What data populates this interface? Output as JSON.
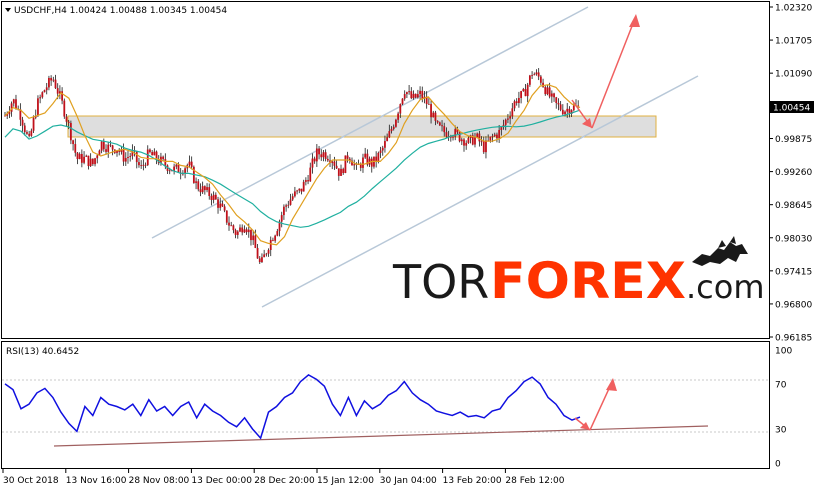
{
  "header": {
    "info": "USDCHF,H4 1.00424 1.00488 1.00345 1.00454",
    "rsi_label": "RSI(13) 40.6452",
    "current_price": "1.00454"
  },
  "logo": {
    "tor": "TOR",
    "forex": "FOREX",
    "dotcom": ".com"
  },
  "colors": {
    "candle_body": "#c0101a",
    "candle_wick": "#1a1a1a",
    "ma_fast": "#e0a020",
    "ma_slow": "#20b0a0",
    "channel": "#b8c8d8",
    "zone_fill": "#d8d8d8",
    "zone_border": "#e0b040",
    "arrow": "#f06060",
    "rsi_line": "#1010e0",
    "rsi_trend": "#a06060",
    "price_tag": "#000000",
    "logo_dark": "#1a1a1a",
    "logo_red": "#ff3300"
  },
  "chart_data": [
    {
      "type": "line",
      "title": "USDCHF,H4 1.00424 1.00488 1.00345 1.00454",
      "ylim": [
        0.96185,
        1.0232
      ],
      "y_ticks": [
        "1.02320",
        "1.01705",
        "1.01090",
        "1.00454",
        "0.99875",
        "0.99260",
        "0.98645",
        "0.98030",
        "0.97415",
        "0.96800",
        "0.96185"
      ],
      "x_ticks": [
        "30 Oct 2018",
        "13 Nov 16:00",
        "28 Nov 08:00",
        "13 Dec 00:00",
        "28 Dec 20:00",
        "15 Jan 12:00",
        "30 Jan 04:00",
        "13 Feb 20:00",
        "28 Feb 12:00"
      ],
      "x": [
        0,
        8,
        16,
        24,
        32,
        40,
        48,
        56,
        64,
        72,
        80,
        88,
        96,
        104,
        112,
        120,
        128,
        136,
        144,
        152,
        160,
        168,
        176,
        184,
        192,
        200,
        208,
        216,
        224,
        232,
        240,
        248,
        256,
        264,
        272,
        280,
        288,
        296,
        304,
        312,
        320,
        328,
        336,
        344,
        352,
        360,
        368,
        376,
        384,
        392,
        400,
        408,
        416,
        424,
        432,
        440,
        448,
        456,
        464,
        472,
        480,
        488,
        496,
        504,
        512,
        520,
        528,
        536,
        544,
        552,
        560,
        568,
        576
      ],
      "series": [
        {
          "values": [
            1.003,
            1.006,
            1.003,
            0.998,
            1.005,
            1.008,
            1.01,
            1.006,
            1.001,
            0.995,
            0.995,
            0.994,
            0.998,
            0.997,
            0.997,
            0.995,
            0.996,
            0.993,
            0.996,
            0.995,
            0.994,
            0.993,
            0.993,
            0.994,
            0.99,
            0.989,
            0.988,
            0.986,
            0.983,
            0.981,
            0.983,
            0.98,
            0.975,
            0.979,
            0.982,
            0.986,
            0.988,
            0.989,
            0.992,
            0.996,
            0.996,
            0.995,
            0.992,
            0.996,
            0.993,
            0.995,
            0.994,
            0.996,
            0.999,
            1.003,
            1.008,
            1.006,
            1.007,
            1.005,
            1.001,
            1.0,
            1.0,
            0.999,
            0.998,
            0.999,
            0.997,
            0.999,
            1.0,
            1.003,
            1.006,
            1.007,
            1.011,
            1.01,
            1.007,
            1.005,
            1.004,
            1.0046,
            1.0045
          ]
        },
        {
          "name": "RSI(13)",
          "ylim": [
            0,
            100
          ],
          "y_ticks": [
            100,
            70,
            30,
            0
          ],
          "values": [
            70,
            65,
            48,
            52,
            62,
            66,
            58,
            45,
            35,
            28,
            50,
            42,
            58,
            52,
            50,
            47,
            52,
            42,
            56,
            46,
            50,
            42,
            50,
            54,
            40,
            52,
            46,
            42,
            36,
            32,
            40,
            30,
            22,
            45,
            50,
            58,
            62,
            72,
            78,
            74,
            68,
            52,
            42,
            58,
            42,
            55,
            48,
            52,
            60,
            64,
            72,
            62,
            56,
            52,
            46,
            44,
            42,
            45,
            41,
            42,
            40,
            46,
            48,
            58,
            64,
            72,
            76,
            70,
            58,
            52,
            42,
            38,
            40.6452
          ]
        }
      ]
    }
  ]
}
